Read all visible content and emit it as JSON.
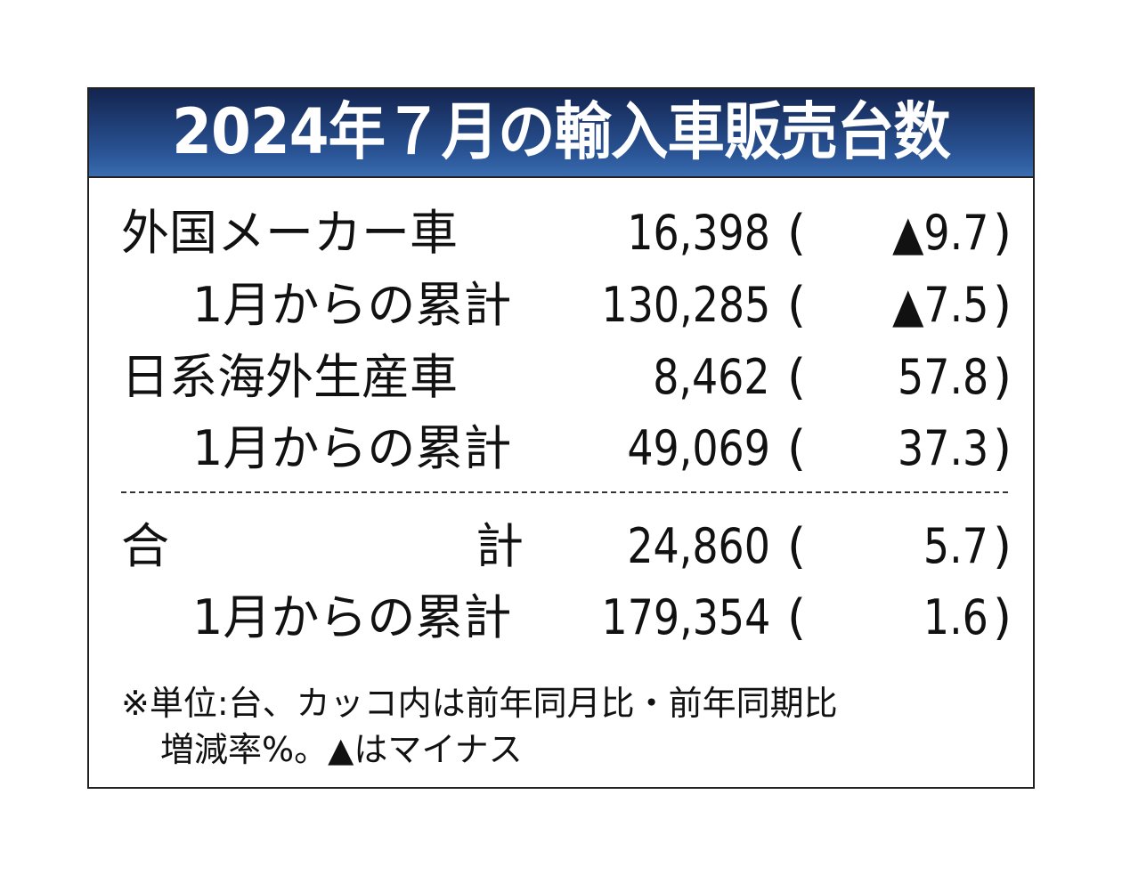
{
  "chart_data": {
    "type": "table",
    "title": "2024年７月の輸入車販売台数",
    "rows": [
      {
        "label": "外国メーカー車",
        "units": "16,398",
        "change": "▲9.7"
      },
      {
        "label": "1月からの累計",
        "units": "130,285",
        "change": "▲7.5"
      },
      {
        "label": "日系海外生産車",
        "units": "8,462",
        "change": "57.8"
      },
      {
        "label": "1月からの累計",
        "units": "49,069",
        "change": "37.3"
      },
      {
        "label_left": "合",
        "label_right": "計",
        "units": "24,860",
        "change": "5.7"
      },
      {
        "label": "1月からの累計",
        "units": "179,354",
        "change": "1.6"
      }
    ],
    "paren_open": "(",
    "paren_close": ")",
    "notes": [
      "※単位:台、カッコ内は前年同月比・前年同期比",
      "増減率%。▲はマイナス"
    ]
  },
  "colors": {
    "header_top": "#13244f",
    "header_bottom": "#3a6db0",
    "title_text": "#ffffff"
  }
}
